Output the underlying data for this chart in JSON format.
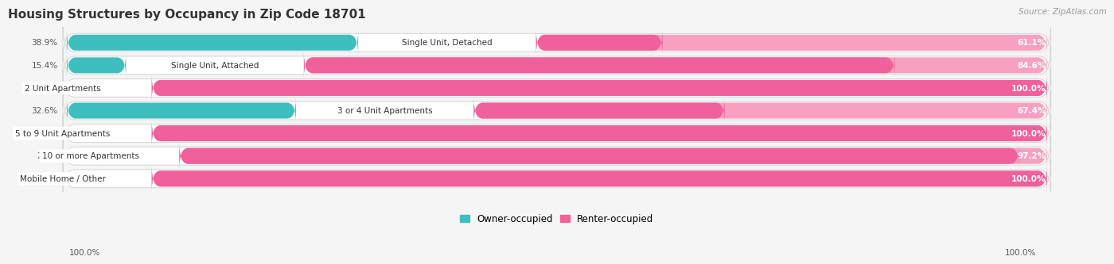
{
  "title": "Housing Structures by Occupancy in Zip Code 18701",
  "source": "Source: ZipAtlas.com",
  "categories": [
    "Single Unit, Detached",
    "Single Unit, Attached",
    "2 Unit Apartments",
    "3 or 4 Unit Apartments",
    "5 to 9 Unit Apartments",
    "10 or more Apartments",
    "Mobile Home / Other"
  ],
  "owner_pct": [
    38.9,
    15.4,
    0.0,
    32.6,
    0.0,
    2.8,
    0.0
  ],
  "renter_pct": [
    61.1,
    84.6,
    100.0,
    67.4,
    100.0,
    97.2,
    100.0
  ],
  "owner_color": "#3dbfbf",
  "owner_stub_color": "#85d5d8",
  "renter_color": "#f0609a",
  "renter_light_color": "#f8a0c0",
  "bg_color": "#f5f5f5",
  "row_bg_color": "#ffffff",
  "row_border_color": "#d8d8d8",
  "title_fontsize": 11,
  "label_fontsize": 7.5,
  "value_fontsize": 7.5,
  "axis_label": "100.0%"
}
